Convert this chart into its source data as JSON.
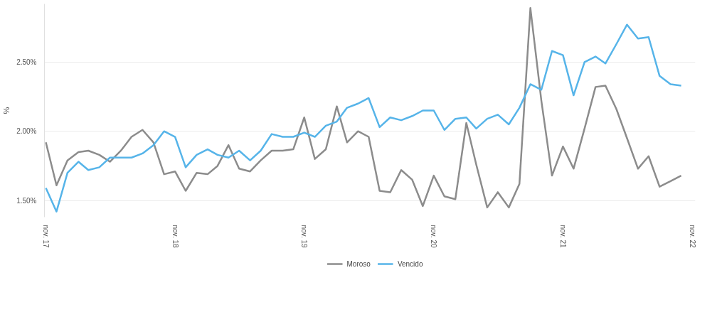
{
  "chart_data": {
    "type": "line",
    "ylabel": "%",
    "x": [
      "2017-11",
      "2017-12",
      "2018-01",
      "2018-02",
      "2018-03",
      "2018-04",
      "2018-05",
      "2018-06",
      "2018-07",
      "2018-08",
      "2018-09",
      "2018-10",
      "2018-11",
      "2018-12",
      "2019-01",
      "2019-02",
      "2019-03",
      "2019-04",
      "2019-05",
      "2019-06",
      "2019-07",
      "2019-08",
      "2019-09",
      "2019-10",
      "2019-11",
      "2019-12",
      "2020-01",
      "2020-02",
      "2020-03",
      "2020-04",
      "2020-05",
      "2020-06",
      "2020-07",
      "2020-08",
      "2020-09",
      "2020-10",
      "2020-11",
      "2020-12",
      "2021-01",
      "2021-02",
      "2021-03",
      "2021-04",
      "2021-05",
      "2021-06",
      "2021-07",
      "2021-08",
      "2021-09",
      "2021-10",
      "2021-11",
      "2021-12",
      "2022-01",
      "2022-02",
      "2022-03",
      "2022-04",
      "2022-05",
      "2022-06",
      "2022-07",
      "2022-08",
      "2022-09",
      "2022-10"
    ],
    "series": [
      {
        "name": "Moroso",
        "color": "#8c8c8c",
        "values": [
          1.92,
          1.61,
          1.79,
          1.85,
          1.86,
          1.83,
          1.78,
          1.86,
          1.96,
          2.01,
          1.92,
          1.69,
          1.71,
          1.57,
          1.7,
          1.69,
          1.75,
          1.9,
          1.73,
          1.71,
          1.79,
          1.86,
          1.86,
          1.87,
          2.1,
          1.8,
          1.87,
          2.18,
          1.92,
          2.0,
          1.96,
          1.57,
          1.56,
          1.72,
          1.65,
          1.46,
          1.68,
          1.53,
          1.51,
          2.06,
          1.76,
          1.45,
          1.56,
          1.45,
          1.62,
          2.89,
          2.22,
          1.68,
          1.89,
          1.73,
          2.02,
          2.32,
          2.33,
          2.16,
          1.95,
          1.73,
          1.82,
          1.6,
          1.64,
          1.68
        ]
      },
      {
        "name": "Vencido",
        "color": "#56b4e9",
        "values": [
          1.59,
          1.42,
          1.7,
          1.78,
          1.72,
          1.74,
          1.81,
          1.81,
          1.81,
          1.84,
          1.9,
          2.0,
          1.96,
          1.74,
          1.83,
          1.87,
          1.83,
          1.81,
          1.86,
          1.79,
          1.86,
          1.98,
          1.96,
          1.96,
          1.99,
          1.96,
          2.04,
          2.07,
          2.17,
          2.2,
          2.24,
          2.03,
          2.1,
          2.08,
          2.11,
          2.15,
          2.15,
          2.01,
          2.09,
          2.1,
          2.02,
          2.09,
          2.12,
          2.05,
          2.17,
          2.34,
          2.3,
          2.58,
          2.55,
          2.26,
          2.5,
          2.54,
          2.49,
          2.63,
          2.77,
          2.67,
          2.68,
          2.4,
          2.34,
          2.33
        ]
      }
    ],
    "xlim": [
      "2017-10-28",
      "2022-11-10"
    ],
    "xticks": [
      {
        "value": "2017-11",
        "label": "nov. 17"
      },
      {
        "value": "2018-11",
        "label": "nov. 18"
      },
      {
        "value": "2019-11",
        "label": "nov. 19"
      },
      {
        "value": "2020-11",
        "label": "nov. 20"
      },
      {
        "value": "2021-11",
        "label": "nov. 21"
      },
      {
        "value": "2022-11",
        "label": "nov. 22"
      }
    ],
    "ylim": [
      1.38,
      2.92
    ],
    "yticks": [
      {
        "value": 1.5,
        "label": "1.50%"
      },
      {
        "value": 2.0,
        "label": "2.00%"
      },
      {
        "value": 2.5,
        "label": "2.50%"
      }
    ],
    "grid": "y",
    "legend": "bottom",
    "marker": "none",
    "line_style": "solid"
  }
}
